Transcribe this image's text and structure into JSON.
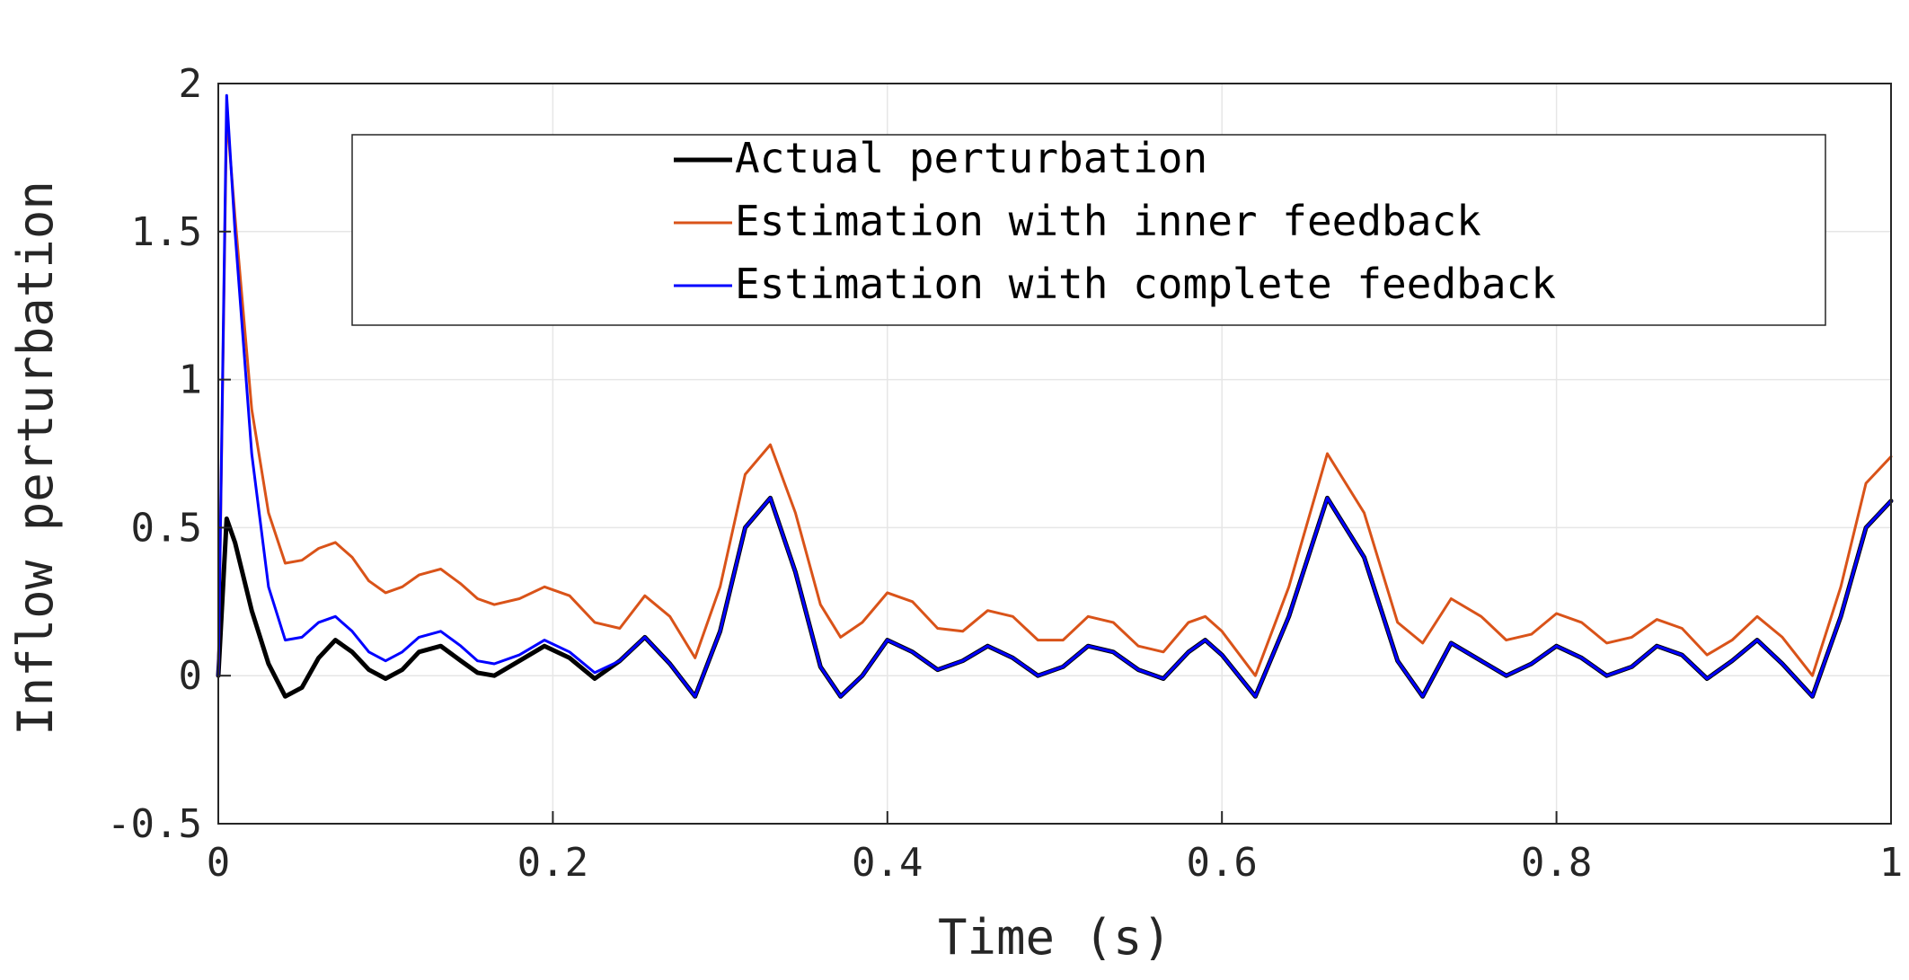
{
  "chart_data": {
    "type": "line",
    "title": "",
    "xlabel": "Time (s)",
    "ylabel": "Inflow perturbation",
    "xlim": [
      0,
      1
    ],
    "ylim": [
      -0.5,
      2
    ],
    "xticks": [
      0,
      0.2,
      0.4,
      0.6,
      0.8,
      1
    ],
    "xtick_labels": [
      "0",
      "0.2",
      "0.4",
      "0.6",
      "0.8",
      "1"
    ],
    "yticks": [
      -0.5,
      0,
      0.5,
      1,
      1.5,
      2
    ],
    "ytick_labels": [
      "-0.5",
      "0",
      "0.5",
      "1",
      "1.5",
      "2"
    ],
    "grid": true,
    "legend_position": "top-right",
    "series": [
      {
        "name": "Actual perturbation",
        "color": "#000000",
        "x": [
          0,
          0.005,
          0.01,
          0.02,
          0.03,
          0.04,
          0.05,
          0.06,
          0.07,
          0.08,
          0.09,
          0.1,
          0.11,
          0.12,
          0.133,
          0.145,
          0.155,
          0.165,
          0.18,
          0.195,
          0.21,
          0.225,
          0.24,
          0.255,
          0.27,
          0.285,
          0.3,
          0.315,
          0.33,
          0.345,
          0.36,
          0.372,
          0.385,
          0.4,
          0.415,
          0.43,
          0.445,
          0.46,
          0.475,
          0.49,
          0.505,
          0.52,
          0.535,
          0.55,
          0.565,
          0.58,
          0.59,
          0.6,
          0.62,
          0.64,
          0.663,
          0.685,
          0.705,
          0.72,
          0.737,
          0.755,
          0.77,
          0.785,
          0.8,
          0.815,
          0.83,
          0.845,
          0.86,
          0.875,
          0.89,
          0.905,
          0.92,
          0.935,
          0.953,
          0.97,
          0.985,
          1.0
        ],
        "y": [
          0,
          0.53,
          0.45,
          0.22,
          0.04,
          -0.07,
          -0.04,
          0.06,
          0.12,
          0.08,
          0.02,
          -0.01,
          0.02,
          0.08,
          0.1,
          0.05,
          0.01,
          0.0,
          0.05,
          0.1,
          0.06,
          -0.01,
          0.05,
          0.13,
          0.04,
          -0.07,
          0.15,
          0.5,
          0.6,
          0.35,
          0.03,
          -0.07,
          0.0,
          0.12,
          0.08,
          0.02,
          0.05,
          0.1,
          0.06,
          0.0,
          0.03,
          0.1,
          0.08,
          0.02,
          -0.01,
          0.08,
          0.12,
          0.07,
          -0.07,
          0.2,
          0.6,
          0.4,
          0.05,
          -0.07,
          0.11,
          0.05,
          0.0,
          0.04,
          0.1,
          0.06,
          0.0,
          0.03,
          0.1,
          0.07,
          -0.01,
          0.05,
          0.12,
          0.04,
          -0.07,
          0.2,
          0.5,
          0.59
        ]
      },
      {
        "name": "Estimation with inner feedback",
        "color": "#d95319",
        "x": [
          0,
          0.005,
          0.01,
          0.02,
          0.03,
          0.04,
          0.05,
          0.06,
          0.07,
          0.08,
          0.09,
          0.1,
          0.11,
          0.12,
          0.133,
          0.145,
          0.155,
          0.165,
          0.18,
          0.195,
          0.21,
          0.225,
          0.24,
          0.255,
          0.27,
          0.285,
          0.3,
          0.315,
          0.33,
          0.345,
          0.36,
          0.372,
          0.385,
          0.4,
          0.415,
          0.43,
          0.445,
          0.46,
          0.475,
          0.49,
          0.505,
          0.52,
          0.535,
          0.55,
          0.565,
          0.58,
          0.59,
          0.6,
          0.62,
          0.64,
          0.663,
          0.685,
          0.705,
          0.72,
          0.737,
          0.755,
          0.77,
          0.785,
          0.8,
          0.815,
          0.83,
          0.845,
          0.86,
          0.875,
          0.89,
          0.905,
          0.92,
          0.935,
          0.953,
          0.97,
          0.985,
          1.0
        ],
        "y": [
          0,
          1.9,
          1.55,
          0.9,
          0.55,
          0.38,
          0.39,
          0.43,
          0.45,
          0.4,
          0.32,
          0.28,
          0.3,
          0.34,
          0.36,
          0.31,
          0.26,
          0.24,
          0.26,
          0.3,
          0.27,
          0.18,
          0.16,
          0.27,
          0.2,
          0.06,
          0.3,
          0.68,
          0.78,
          0.55,
          0.24,
          0.13,
          0.18,
          0.28,
          0.25,
          0.16,
          0.15,
          0.22,
          0.2,
          0.12,
          0.12,
          0.2,
          0.18,
          0.1,
          0.08,
          0.18,
          0.2,
          0.15,
          0.0,
          0.3,
          0.75,
          0.55,
          0.18,
          0.11,
          0.26,
          0.2,
          0.12,
          0.14,
          0.21,
          0.18,
          0.11,
          0.13,
          0.19,
          0.16,
          0.07,
          0.12,
          0.2,
          0.13,
          0.0,
          0.3,
          0.65,
          0.74
        ]
      },
      {
        "name": "Estimation with complete feedback",
        "color": "#0000ff",
        "x": [
          0,
          0.005,
          0.01,
          0.02,
          0.03,
          0.04,
          0.05,
          0.06,
          0.07,
          0.08,
          0.09,
          0.1,
          0.11,
          0.12,
          0.133,
          0.145,
          0.155,
          0.165,
          0.18,
          0.195,
          0.21,
          0.225,
          0.24,
          0.255,
          0.27,
          0.285,
          0.3,
          0.315,
          0.33,
          0.345,
          0.36,
          0.372,
          0.385,
          0.4,
          0.415,
          0.43,
          0.445,
          0.46,
          0.475,
          0.49,
          0.505,
          0.52,
          0.535,
          0.55,
          0.565,
          0.58,
          0.59,
          0.6,
          0.62,
          0.64,
          0.663,
          0.685,
          0.705,
          0.72,
          0.737,
          0.755,
          0.77,
          0.785,
          0.8,
          0.815,
          0.83,
          0.845,
          0.86,
          0.875,
          0.89,
          0.905,
          0.92,
          0.935,
          0.953,
          0.97,
          0.985,
          1.0
        ],
        "y": [
          0,
          1.96,
          1.5,
          0.75,
          0.3,
          0.12,
          0.13,
          0.18,
          0.2,
          0.15,
          0.08,
          0.05,
          0.08,
          0.13,
          0.15,
          0.1,
          0.05,
          0.04,
          0.07,
          0.12,
          0.08,
          0.01,
          0.05,
          0.13,
          0.04,
          -0.07,
          0.15,
          0.5,
          0.6,
          0.35,
          0.03,
          -0.07,
          0.0,
          0.12,
          0.08,
          0.02,
          0.05,
          0.1,
          0.06,
          0.0,
          0.03,
          0.1,
          0.08,
          0.02,
          -0.01,
          0.08,
          0.12,
          0.07,
          -0.07,
          0.2,
          0.6,
          0.4,
          0.05,
          -0.07,
          0.11,
          0.05,
          0.0,
          0.04,
          0.1,
          0.06,
          0.0,
          0.03,
          0.1,
          0.07,
          -0.01,
          0.05,
          0.12,
          0.04,
          -0.07,
          0.2,
          0.5,
          0.59
        ]
      }
    ]
  }
}
